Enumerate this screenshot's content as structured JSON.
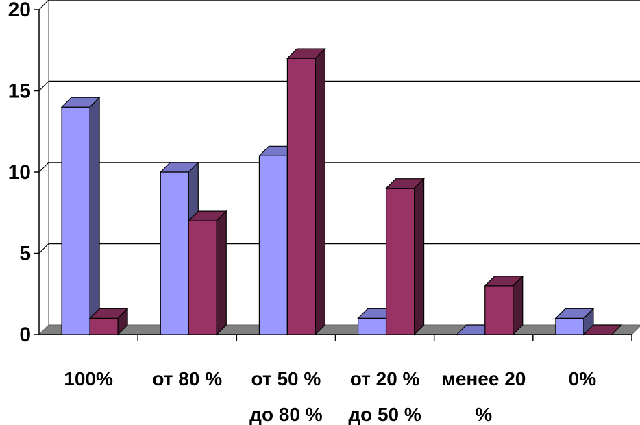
{
  "chart_data": {
    "type": "bar",
    "style": "3d-clustered-column",
    "categories": [
      [
        "100%"
      ],
      [
        "от 80 %"
      ],
      [
        "от 50 %",
        "до 80 %"
      ],
      [
        "от 20 %",
        "до 50 %"
      ],
      [
        "менее 20",
        "%"
      ],
      [
        "0%"
      ]
    ],
    "series": [
      {
        "values": [
          14,
          10,
          11,
          1,
          0,
          1
        ],
        "color": "#9999FF"
      },
      {
        "values": [
          1,
          7,
          17,
          9,
          3,
          0
        ],
        "color": "#993366"
      }
    ],
    "yticks": [
      "0",
      "5",
      "10",
      "15",
      "20"
    ],
    "ylim": [
      0,
      20
    ],
    "grid": true,
    "legend": "none"
  }
}
